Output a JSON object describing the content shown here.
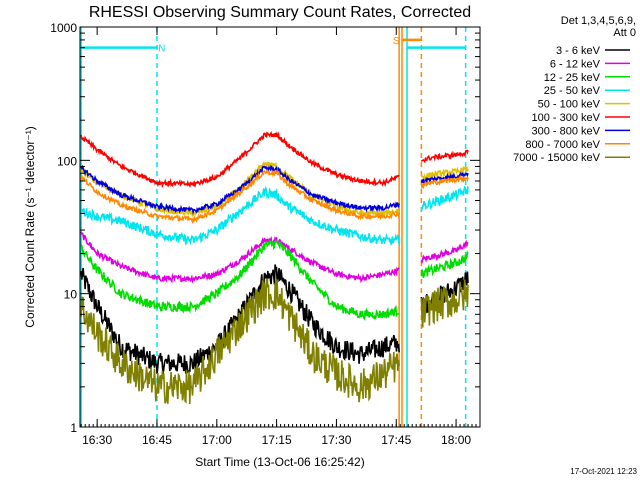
{
  "chart_data": {
    "type": "line",
    "title": "RHESSI Observing Summary Count Rates, Corrected",
    "xlabel": "Start Time (13-Oct-06 16:25:42)",
    "ylabel": "Corrected Count Rate (s⁻¹ detector⁻¹)",
    "yscale": "log",
    "ylim": [
      1,
      1000
    ],
    "xlim": [
      16.4283,
      18.1
    ],
    "xticks": [
      {
        "x": 16.5,
        "label": "16:30"
      },
      {
        "x": 16.75,
        "label": "16:45"
      },
      {
        "x": 17.0,
        "label": "17:00"
      },
      {
        "x": 17.25,
        "label": "17:15"
      },
      {
        "x": 17.5,
        "label": "17:30"
      },
      {
        "x": 17.75,
        "label": "17:45"
      },
      {
        "x": 18.0,
        "label": "18:00"
      }
    ],
    "yticks": [
      {
        "y": 1,
        "label": "1"
      },
      {
        "y": 10,
        "label": "10"
      },
      {
        "y": 100,
        "label": "100"
      },
      {
        "y": 1000,
        "label": "1000"
      }
    ],
    "legend_header": [
      "Det 1,3,4,5,6,9,",
      "Att 0"
    ],
    "legend_position": "right",
    "gaps": [
      [
        16.433,
        16.433
      ],
      [
        17.762,
        17.855
      ]
    ],
    "series": [
      {
        "name": "3 - 6 keV",
        "color": "#000000",
        "noise": 0.18,
        "points": [
          [
            16.433,
            14
          ],
          [
            16.5,
            8
          ],
          [
            16.6,
            4
          ],
          [
            16.75,
            3
          ],
          [
            16.9,
            3
          ],
          [
            17.0,
            4
          ],
          [
            17.1,
            7
          ],
          [
            17.2,
            13
          ],
          [
            17.25,
            14
          ],
          [
            17.3,
            11
          ],
          [
            17.4,
            6
          ],
          [
            17.5,
            4
          ],
          [
            17.6,
            3.5
          ],
          [
            17.7,
            4
          ],
          [
            17.762,
            4.3
          ],
          [
            17.855,
            8
          ],
          [
            17.9,
            9
          ],
          [
            18.0,
            11
          ],
          [
            18.05,
            13
          ]
        ]
      },
      {
        "name": "6 - 12 keV",
        "color": "#e000e0",
        "noise": 0.05,
        "points": [
          [
            16.433,
            28
          ],
          [
            16.5,
            20
          ],
          [
            16.6,
            16
          ],
          [
            16.75,
            13
          ],
          [
            16.9,
            13
          ],
          [
            17.0,
            14
          ],
          [
            17.1,
            18
          ],
          [
            17.2,
            25
          ],
          [
            17.25,
            25
          ],
          [
            17.3,
            22
          ],
          [
            17.4,
            17
          ],
          [
            17.5,
            14
          ],
          [
            17.6,
            13
          ],
          [
            17.7,
            14
          ],
          [
            17.762,
            15
          ],
          [
            17.855,
            18
          ],
          [
            17.9,
            19
          ],
          [
            18.0,
            21
          ],
          [
            18.05,
            24
          ]
        ]
      },
      {
        "name": "12 - 25 keV",
        "color": "#00dd00",
        "noise": 0.08,
        "points": [
          [
            16.433,
            22
          ],
          [
            16.5,
            15
          ],
          [
            16.6,
            10
          ],
          [
            16.75,
            8
          ],
          [
            16.9,
            8
          ],
          [
            17.0,
            10
          ],
          [
            17.1,
            14
          ],
          [
            17.2,
            23
          ],
          [
            17.25,
            24
          ],
          [
            17.3,
            20
          ],
          [
            17.4,
            12
          ],
          [
            17.5,
            8
          ],
          [
            17.6,
            7
          ],
          [
            17.7,
            7
          ],
          [
            17.762,
            7.5
          ],
          [
            17.855,
            14
          ],
          [
            17.9,
            15
          ],
          [
            18.0,
            17
          ],
          [
            18.05,
            19
          ]
        ]
      },
      {
        "name": "25 - 50 keV",
        "color": "#00e5ee",
        "noise": 0.08,
        "points": [
          [
            16.433,
            42
          ],
          [
            16.5,
            38
          ],
          [
            16.6,
            35
          ],
          [
            16.75,
            28
          ],
          [
            16.9,
            25
          ],
          [
            17.0,
            30
          ],
          [
            17.1,
            42
          ],
          [
            17.2,
            58
          ],
          [
            17.25,
            55
          ],
          [
            17.3,
            45
          ],
          [
            17.4,
            35
          ],
          [
            17.5,
            30
          ],
          [
            17.6,
            27
          ],
          [
            17.7,
            25
          ],
          [
            17.762,
            25
          ],
          [
            17.855,
            45
          ],
          [
            17.9,
            48
          ],
          [
            18.0,
            55
          ],
          [
            18.05,
            60
          ]
        ]
      },
      {
        "name": "50 - 100 keV",
        "color": "#e0c000",
        "noise": 0.05,
        "points": [
          [
            16.433,
            85
          ],
          [
            16.5,
            68
          ],
          [
            16.6,
            55
          ],
          [
            16.75,
            43
          ],
          [
            16.9,
            40
          ],
          [
            17.0,
            45
          ],
          [
            17.1,
            62
          ],
          [
            17.2,
            95
          ],
          [
            17.25,
            90
          ],
          [
            17.3,
            75
          ],
          [
            17.4,
            55
          ],
          [
            17.5,
            45
          ],
          [
            17.6,
            40
          ],
          [
            17.7,
            40
          ],
          [
            17.762,
            42
          ],
          [
            17.855,
            75
          ],
          [
            17.9,
            78
          ],
          [
            18.0,
            82
          ],
          [
            18.05,
            86
          ]
        ]
      },
      {
        "name": "100 - 300 keV",
        "color": "#ff0000",
        "noise": 0.04,
        "points": [
          [
            16.433,
            150
          ],
          [
            16.5,
            120
          ],
          [
            16.6,
            90
          ],
          [
            16.75,
            68
          ],
          [
            16.9,
            66
          ],
          [
            17.0,
            75
          ],
          [
            17.1,
            105
          ],
          [
            17.2,
            155
          ],
          [
            17.25,
            155
          ],
          [
            17.3,
            130
          ],
          [
            17.4,
            95
          ],
          [
            17.5,
            78
          ],
          [
            17.6,
            70
          ],
          [
            17.7,
            68
          ],
          [
            17.762,
            75
          ],
          [
            17.855,
            100
          ],
          [
            17.9,
            105
          ],
          [
            18.0,
            110
          ],
          [
            18.05,
            115
          ]
        ]
      },
      {
        "name": "300 - 800 keV",
        "color": "#0000dd",
        "noise": 0.04,
        "points": [
          [
            16.433,
            88
          ],
          [
            16.5,
            70
          ],
          [
            16.6,
            55
          ],
          [
            16.75,
            45
          ],
          [
            16.9,
            42
          ],
          [
            17.0,
            47
          ],
          [
            17.1,
            62
          ],
          [
            17.2,
            88
          ],
          [
            17.25,
            86
          ],
          [
            17.3,
            72
          ],
          [
            17.4,
            55
          ],
          [
            17.5,
            48
          ],
          [
            17.6,
            44
          ],
          [
            17.7,
            44
          ],
          [
            17.762,
            47
          ],
          [
            17.855,
            70
          ],
          [
            17.9,
            72
          ],
          [
            18.0,
            76
          ],
          [
            18.05,
            80
          ]
        ]
      },
      {
        "name": "800 - 7000 keV",
        "color": "#ff8800",
        "noise": 0.04,
        "points": [
          [
            16.433,
            75
          ],
          [
            16.5,
            58
          ],
          [
            16.6,
            46
          ],
          [
            16.75,
            38
          ],
          [
            16.9,
            36
          ],
          [
            17.0,
            42
          ],
          [
            17.1,
            58
          ],
          [
            17.2,
            82
          ],
          [
            17.25,
            80
          ],
          [
            17.3,
            66
          ],
          [
            17.4,
            50
          ],
          [
            17.5,
            42
          ],
          [
            17.6,
            38
          ],
          [
            17.7,
            38
          ],
          [
            17.762,
            40
          ],
          [
            17.855,
            65
          ],
          [
            17.9,
            68
          ],
          [
            18.0,
            72
          ],
          [
            18.05,
            74
          ]
        ]
      },
      {
        "name": "7000 - 15000 keV",
        "color": "#808000",
        "noise": 0.3,
        "points": [
          [
            16.433,
            8
          ],
          [
            16.5,
            5
          ],
          [
            16.6,
            3
          ],
          [
            16.75,
            2
          ],
          [
            16.9,
            2
          ],
          [
            17.0,
            3.5
          ],
          [
            17.1,
            6
          ],
          [
            17.2,
            10
          ],
          [
            17.25,
            10
          ],
          [
            17.3,
            7
          ],
          [
            17.4,
            3.5
          ],
          [
            17.5,
            2.5
          ],
          [
            17.6,
            2
          ],
          [
            17.7,
            2.5
          ],
          [
            17.762,
            3
          ],
          [
            17.855,
            7
          ],
          [
            17.9,
            8
          ],
          [
            18.0,
            9
          ],
          [
            18.05,
            10
          ]
        ]
      }
    ],
    "vertical_lines": [
      {
        "x": 16.433,
        "color": "#00e5ee",
        "dash": false
      },
      {
        "x": 16.75,
        "color": "#00e5ee",
        "dash": true
      },
      {
        "x": 17.762,
        "color": "#ff8800",
        "dash": false
      },
      {
        "x": 17.774,
        "color": "#ff8800",
        "dash": false
      },
      {
        "x": 17.855,
        "color": "#ff8800",
        "dash": true
      },
      {
        "x": 17.795,
        "color": "#00e5ee",
        "dash": false
      },
      {
        "x": 18.04,
        "color": "#00e5ee",
        "dash": true
      }
    ],
    "flag_bars": [
      {
        "x0": 16.433,
        "x1": 16.75,
        "y": 700,
        "color": "#00e5ee",
        "label": "N",
        "label_x": 16.77
      },
      {
        "x0": 17.795,
        "x1": 18.04,
        "y": 700,
        "color": "#00e5ee",
        "label": "",
        "label_x": 17.8
      },
      {
        "x0": 17.774,
        "x1": 17.855,
        "y": 800,
        "color": "#ff8800",
        "label": "S",
        "label_x": 17.75
      }
    ]
  },
  "timestamp": "17-Oct-2021 12:23"
}
